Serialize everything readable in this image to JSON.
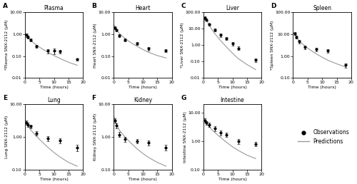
{
  "chart_data": [
    {
      "type": "line",
      "annotation": "A",
      "title": "Plasma",
      "xlabel": "Time (hours)",
      "ylabel": "*Plasma SNX-2112 (μM)",
      "log": "y",
      "legend": "center left",
      "xlim": [
        0,
        20
      ],
      "xticks": [
        0,
        5,
        10,
        15,
        20
      ],
      "ylim": [
        0.01,
        10.0
      ],
      "yticks": [
        0.01,
        {
          "value": 0.1,
          "label": "0.10"
        },
        {
          "value": 1.0,
          "label": "1.00"
        },
        {
          "value": 10.0,
          "label": "10.00"
        }
      ],
      "series": [
        {
          "name": "Observations",
          "type": "scatter",
          "color": "black",
          "marker": "o",
          "x": [
            0.5,
            1.0,
            2.0,
            4.0,
            8.0,
            10.0,
            12.0,
            18.0
          ],
          "values": [
            0.9,
            0.75,
            0.55,
            0.28,
            0.17,
            0.17,
            0.16,
            0.07
          ],
          "yerr_lo": [
            0.15,
            0.12,
            0.08,
            0.05,
            0.04,
            0.05,
            0.03,
            0.01
          ],
          "yerr_hi": [
            0.15,
            0.12,
            0.08,
            0.05,
            0.04,
            0.05,
            0.03,
            0.01
          ]
        },
        {
          "name": "Predictions",
          "type": "line",
          "color": "#999999",
          "line_style": "solid",
          "x": [
            0.0,
            0.3,
            0.6,
            1.0,
            2.0,
            3.0,
            4.0,
            6.0,
            8.0,
            10.0,
            12.0,
            15.0,
            18.0
          ],
          "values": [
            1.2,
            1.0,
            0.85,
            0.72,
            0.52,
            0.4,
            0.31,
            0.21,
            0.145,
            0.105,
            0.078,
            0.052,
            0.038
          ]
        }
      ]
    },
    {
      "type": "line",
      "annotation": "B",
      "title": "Heart",
      "xlabel": "Time (hours)",
      "ylabel": "Heart SNX-2112 (μM)",
      "log": "y",
      "legend": "center left",
      "xlim": [
        0,
        20
      ],
      "xticks": [
        0,
        5,
        10,
        15,
        20
      ],
      "ylim": [
        0.01,
        10.0
      ],
      "yticks": [
        0.01,
        {
          "value": 0.1,
          "label": "0.10"
        },
        {
          "value": 1.0,
          "label": "1.00"
        },
        {
          "value": 10.0,
          "label": "10.00"
        }
      ],
      "series": [
        {
          "name": "Observations",
          "type": "scatter",
          "color": "black",
          "marker": "o",
          "x": [
            0.5,
            1.0,
            2.0,
            4.0,
            8.0,
            12.0,
            18.0
          ],
          "values": [
            2.0,
            1.5,
            0.85,
            0.55,
            0.38,
            0.22,
            0.18
          ],
          "yerr_lo": [
            0.3,
            0.2,
            0.12,
            0.08,
            0.06,
            0.04,
            0.03
          ],
          "yerr_hi": [
            0.3,
            0.2,
            0.12,
            0.08,
            0.06,
            0.04,
            0.03
          ]
        },
        {
          "name": "Predictions",
          "type": "line",
          "color": "#999999",
          "line_style": "solid",
          "x": [
            0.0,
            0.5,
            1.0,
            2.0,
            4.0,
            6.0,
            8.0,
            10.0,
            12.0,
            15.0,
            18.0
          ],
          "values": [
            2.8,
            2.0,
            1.55,
            1.05,
            0.62,
            0.4,
            0.28,
            0.2,
            0.148,
            0.105,
            0.082
          ]
        }
      ]
    },
    {
      "type": "line",
      "annotation": "C",
      "title": "Liver",
      "xlabel": "Time (hours)",
      "ylabel": "*Liver SNX-2112 (μM)",
      "log": "y",
      "legend": "center left",
      "xlim": [
        0,
        20
      ],
      "xticks": [
        0,
        5,
        10,
        15,
        20
      ],
      "ylim": [
        0.01,
        100.0
      ],
      "yticks": [
        0.01,
        {
          "value": 0.1,
          "label": "0.10"
        },
        {
          "value": 1.0,
          "label": "1.00"
        },
        {
          "value": 10.0,
          "label": "10.00"
        },
        {
          "value": 100.0,
          "label": "100.00"
        }
      ],
      "series": [
        {
          "name": "Observations",
          "type": "scatter",
          "color": "black",
          "marker": "o",
          "x": [
            0.5,
            1.0,
            2.0,
            4.0,
            6.0,
            8.0,
            10.0,
            12.0,
            18.0
          ],
          "values": [
            45.0,
            35.0,
            18.0,
            8.5,
            4.0,
            2.5,
            1.2,
            0.65,
            0.12
          ],
          "yerr_lo": [
            8.0,
            6.0,
            3.0,
            1.5,
            0.8,
            0.5,
            0.25,
            0.15,
            0.03
          ],
          "yerr_hi": [
            8.0,
            6.0,
            3.0,
            1.5,
            0.8,
            0.5,
            0.25,
            0.15,
            0.03
          ]
        },
        {
          "name": "Predictions",
          "type": "line",
          "color": "#999999",
          "line_style": "solid",
          "x": [
            0.0,
            0.25,
            0.5,
            0.75,
            1.0,
            1.5,
            2.0,
            3.0,
            4.0,
            6.0,
            8.0,
            10.0,
            12.0,
            15.0,
            18.0
          ],
          "values": [
            0.5,
            20.0,
            48.0,
            45.0,
            38.0,
            25.0,
            16.0,
            8.5,
            4.8,
            1.8,
            0.75,
            0.32,
            0.15,
            0.065,
            0.032
          ]
        }
      ]
    },
    {
      "type": "line",
      "annotation": "D",
      "title": "Spleen",
      "xlabel": "Time (hours)",
      "ylabel": "*Spleen SNX-2112 (μM)",
      "log": "y",
      "legend": "center left",
      "xlim": [
        0,
        20
      ],
      "xticks": [
        0,
        5,
        10,
        15,
        20
      ],
      "ylim": [
        0.1,
        100.0
      ],
      "yticks": [
        {
          "value": 0.1,
          "label": "0.10"
        },
        {
          "value": 1.0,
          "label": "1.00"
        },
        {
          "value": 10.0,
          "label": "10.00"
        },
        {
          "value": 100.0,
          "label": "100.00"
        }
      ],
      "series": [
        {
          "name": "Observations",
          "type": "scatter",
          "color": "black",
          "marker": "o",
          "x": [
            0.5,
            1.0,
            2.0,
            4.0,
            8.0,
            12.0,
            18.0
          ],
          "values": [
            11.0,
            7.5,
            4.5,
            2.5,
            2.0,
            1.7,
            0.38
          ],
          "yerr_lo": [
            1.8,
            1.2,
            0.9,
            0.5,
            0.35,
            0.3,
            0.08
          ],
          "yerr_hi": [
            1.8,
            1.2,
            0.9,
            0.5,
            0.35,
            0.3,
            0.08
          ]
        },
        {
          "name": "Predictions",
          "type": "line",
          "color": "#999999",
          "line_style": "solid",
          "x": [
            0.0,
            0.5,
            1.0,
            2.0,
            4.0,
            6.0,
            8.0,
            10.0,
            12.0,
            15.0,
            18.0
          ],
          "values": [
            12.0,
            10.0,
            7.8,
            5.0,
            2.9,
            1.85,
            1.25,
            0.88,
            0.64,
            0.44,
            0.32
          ]
        }
      ]
    },
    {
      "type": "line",
      "annotation": "E",
      "title": "Lung",
      "xlabel": "Time (hours)",
      "ylabel": "Lung SNX-2112 (μM)",
      "log": "y",
      "legend": "center left",
      "xlim": [
        0,
        20
      ],
      "xticks": [
        0,
        5,
        10,
        15,
        20
      ],
      "ylim": [
        0.1,
        10.0
      ],
      "yticks": [
        {
          "value": 0.1,
          "label": "0.10"
        },
        {
          "value": 1.0,
          "label": "1.00"
        },
        {
          "value": 10.0,
          "label": "10.00"
        }
      ],
      "series": [
        {
          "name": "Observations",
          "type": "scatter",
          "color": "black",
          "marker": "o",
          "x": [
            0.5,
            1.0,
            2.0,
            4.0,
            8.0,
            12.0,
            18.0
          ],
          "values": [
            2.8,
            2.4,
            2.1,
            1.3,
            0.9,
            0.78,
            0.48
          ],
          "yerr_lo": [
            0.4,
            0.35,
            0.3,
            0.2,
            0.15,
            0.15,
            0.1
          ],
          "yerr_hi": [
            0.4,
            0.35,
            0.3,
            0.2,
            0.15,
            0.15,
            0.1
          ]
        },
        {
          "name": "Predictions",
          "type": "line",
          "color": "#999999",
          "line_style": "solid",
          "x": [
            0.0,
            0.5,
            1.0,
            2.0,
            4.0,
            6.0,
            8.0,
            10.0,
            12.0,
            15.0,
            18.0
          ],
          "values": [
            3.5,
            2.85,
            2.3,
            1.65,
            1.05,
            0.7,
            0.48,
            0.34,
            0.25,
            0.17,
            0.13
          ]
        }
      ]
    },
    {
      "type": "line",
      "annotation": "F",
      "title": "Kidney",
      "xlabel": "Time (hours)",
      "ylabel": "Kidney SNX-2112 (μM)",
      "log": "y",
      "legend": "center left",
      "xlim": [
        0,
        20
      ],
      "xticks": [
        0,
        5,
        10,
        15,
        20
      ],
      "ylim": [
        0.1,
        10.0
      ],
      "yticks": [
        {
          "value": 0.1,
          "label": "0.10"
        },
        {
          "value": 1.0,
          "label": "1.00"
        },
        {
          "value": 10.0,
          "label": "10.00"
        }
      ],
      "series": [
        {
          "name": "Observations",
          "type": "scatter",
          "color": "black",
          "marker": "o",
          "x": [
            0.5,
            1.0,
            2.0,
            4.0,
            8.0,
            12.0,
            18.0
          ],
          "values": [
            3.2,
            2.2,
            1.2,
            0.85,
            0.75,
            0.68,
            0.48
          ],
          "yerr_lo": [
            0.5,
            0.35,
            0.2,
            0.14,
            0.12,
            0.12,
            0.09
          ],
          "yerr_hi": [
            0.5,
            0.35,
            0.2,
            0.14,
            0.12,
            0.12,
            0.09
          ]
        },
        {
          "name": "Predictions",
          "type": "line",
          "color": "#999999",
          "line_style": "solid",
          "x": [
            0.0,
            0.5,
            1.0,
            2.0,
            4.0,
            6.0,
            8.0,
            10.0,
            12.0,
            15.0,
            18.0
          ],
          "values": [
            4.5,
            3.2,
            2.4,
            1.6,
            0.98,
            0.65,
            0.44,
            0.32,
            0.24,
            0.17,
            0.13
          ]
        }
      ]
    },
    {
      "type": "line",
      "annotation": "G",
      "title": "Intestine",
      "xlabel": "Time (hours)",
      "ylabel": "Intestine SNX-2112 (μM)",
      "log": "y",
      "legend": "center left",
      "xlim": [
        0,
        20
      ],
      "xticks": [
        0,
        5,
        10,
        15,
        20
      ],
      "ylim": [
        0.1,
        20.0
      ],
      "yticks": [
        {
          "value": 0.1,
          "label": "0.10"
        },
        {
          "value": 1.0,
          "label": "1.00"
        },
        {
          "value": 10.0,
          "label": "10.00"
        }
      ],
      "series": [
        {
          "name": "Observations",
          "type": "scatter",
          "color": "black",
          "marker": "o",
          "x": [
            0.5,
            1.0,
            2.0,
            4.0,
            6.0,
            8.0,
            12.0,
            18.0
          ],
          "values": [
            5.5,
            4.5,
            3.8,
            2.8,
            2.0,
            1.7,
            1.0,
            0.8
          ],
          "yerr_lo": [
            0.9,
            0.7,
            0.6,
            0.5,
            0.35,
            0.28,
            0.18,
            0.14
          ],
          "yerr_hi": [
            0.9,
            0.7,
            0.6,
            0.5,
            0.35,
            0.28,
            0.18,
            0.14
          ]
        },
        {
          "name": "Predictions",
          "type": "line",
          "color": "#999999",
          "line_style": "solid",
          "x": [
            0.0,
            0.5,
            1.0,
            2.0,
            4.0,
            6.0,
            8.0,
            10.0,
            12.0,
            15.0,
            18.0
          ],
          "values": [
            7.5,
            5.8,
            4.5,
            3.2,
            2.0,
            1.35,
            0.92,
            0.65,
            0.48,
            0.33,
            0.25
          ]
        }
      ]
    }
  ]
}
